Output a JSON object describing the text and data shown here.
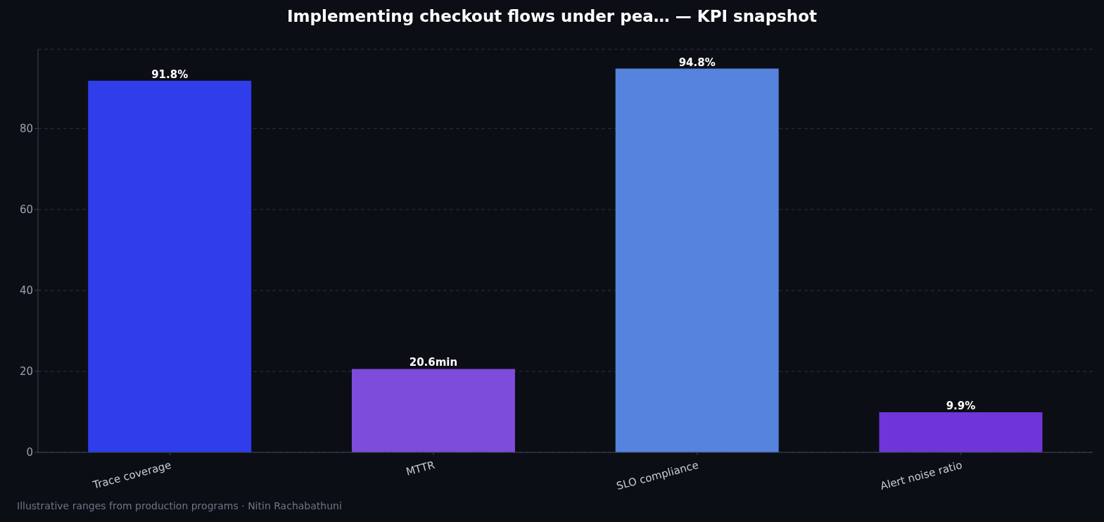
{
  "chart_data": {
    "type": "bar",
    "title": "Implementing checkout flows under pea… — KPI snapshot",
    "categories": [
      "Trace coverage",
      "MTTR",
      "SLO compliance",
      "Alert noise ratio"
    ],
    "values": [
      91.8,
      20.6,
      94.8,
      9.9
    ],
    "colors": [
      "#2f3deb",
      "#7d4cdb",
      "#5683de",
      "#6f35d8"
    ],
    "value_labels": [
      "91.8%",
      "20.6min",
      "94.8%",
      "9.9%"
    ],
    "ylim": [
      0,
      99.6
    ],
    "yticks": [
      0,
      20,
      40,
      60,
      80
    ],
    "grid": "y",
    "legend": false,
    "annotations": [
      "Illustrative ranges from production programs · Nitin Rachabathuni"
    ]
  }
}
